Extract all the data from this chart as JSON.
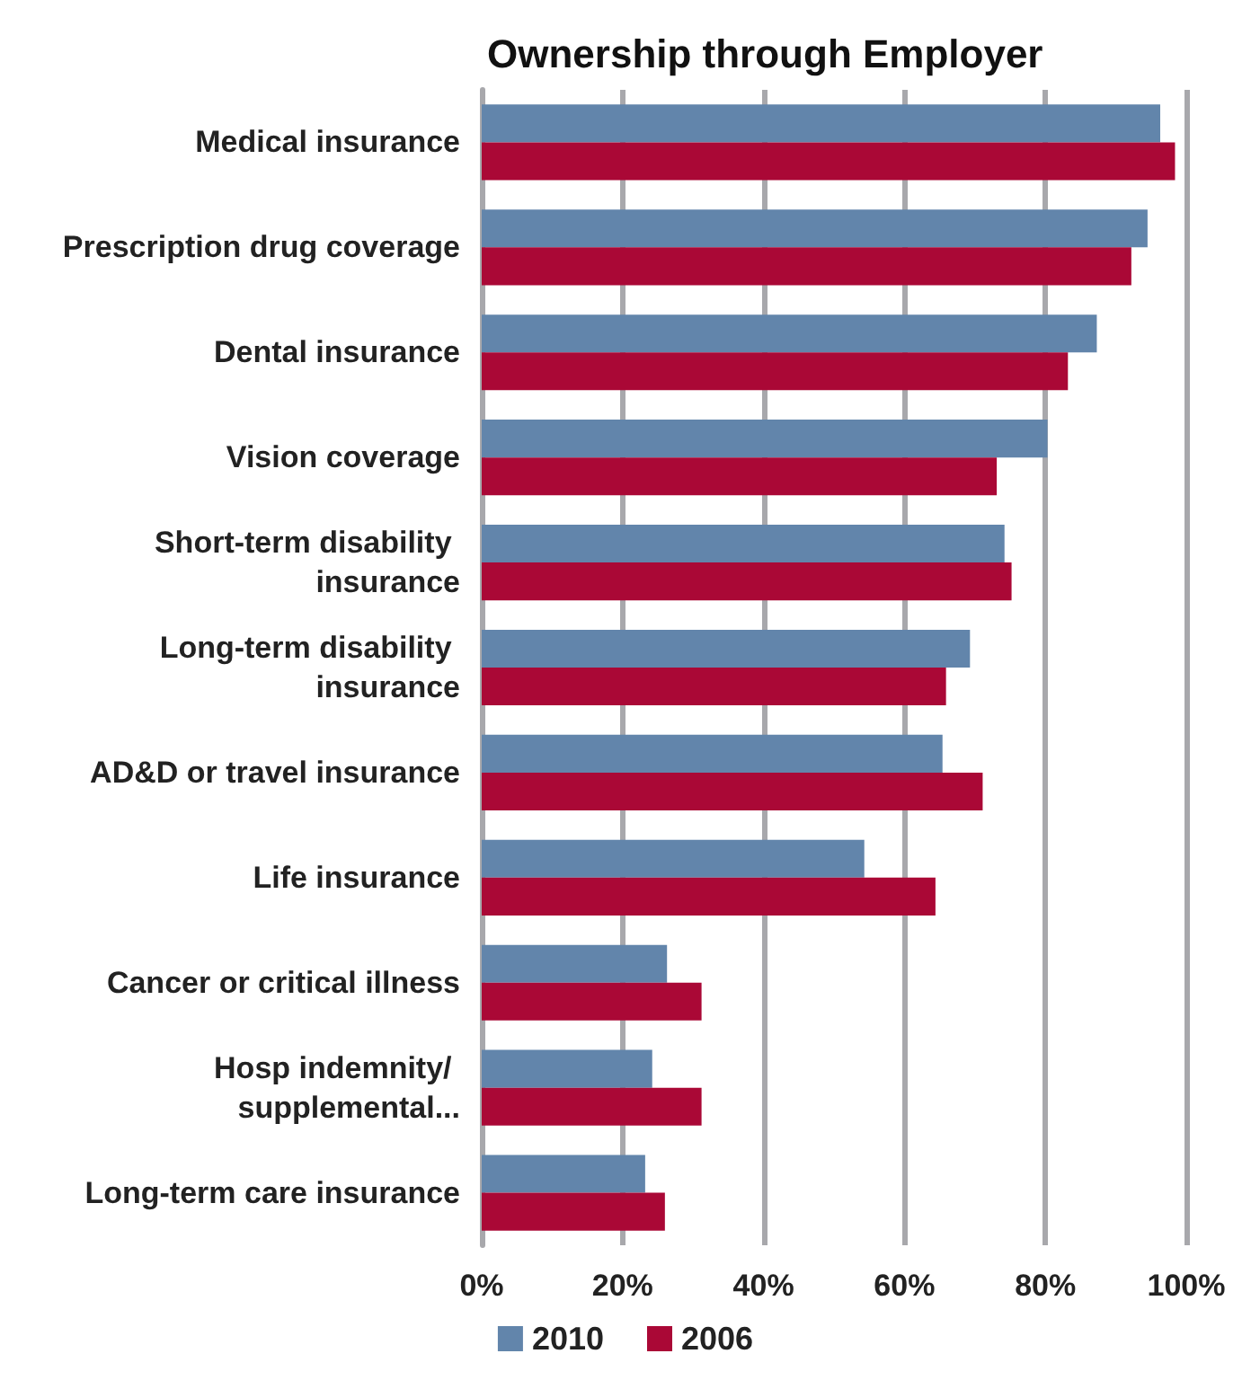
{
  "chart_data": {
    "type": "bar",
    "orientation": "horizontal",
    "title": "Ownership through Employer",
    "categories": [
      "Medical insurance",
      "Prescription drug coverage",
      "Dental insurance",
      "Vision coverage",
      "Short-term disability insurance",
      "Long-term disability insurance",
      "AD&D or travel insurance",
      "Life insurance",
      "Cancer or critical illness",
      "Hosp indemnity/ supplemental...",
      "Long-term care insurance"
    ],
    "series": [
      {
        "name": "2010",
        "color": "#6285ab",
        "values": [
          96.3,
          94.5,
          87.3,
          80.3,
          74.2,
          69.3,
          65.4,
          54.3,
          26.3,
          24.2,
          23.2
        ]
      },
      {
        "name": "2006",
        "color": "#aa0836",
        "values": [
          98.4,
          92.2,
          83.2,
          73.1,
          75.2,
          65.9,
          71.1,
          64.4,
          31.2,
          31.2,
          26.0
        ]
      }
    ],
    "xlim": [
      0,
      100
    ],
    "xticks": [
      {
        "value": 0,
        "label": "0%"
      },
      {
        "value": 20,
        "label": "20%"
      },
      {
        "value": 40,
        "label": "40%"
      },
      {
        "value": 60,
        "label": "60%"
      },
      {
        "value": 80,
        "label": "80%"
      },
      {
        "value": 100,
        "label": "100%"
      }
    ],
    "grid": "x",
    "legend": "bottom"
  }
}
